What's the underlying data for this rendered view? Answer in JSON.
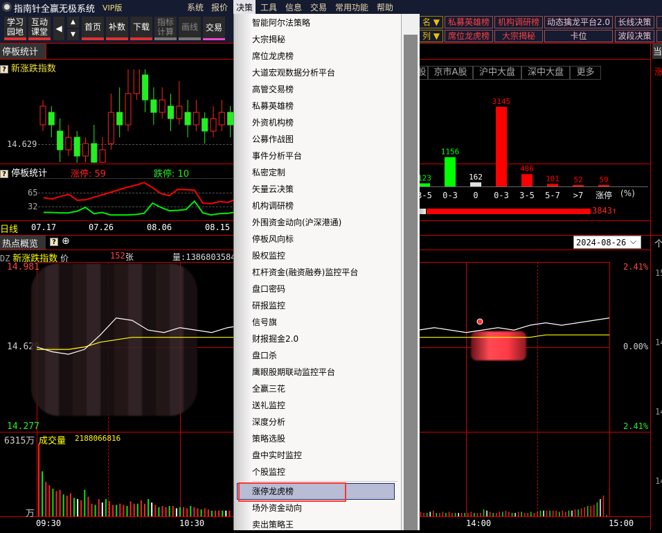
{
  "app": {
    "title": "指南针全赢无极系统",
    "edition": "VIP版",
    "menubar": [
      "系统",
      "报价",
      "决策",
      "工具",
      "信息",
      "交易",
      "常用功能",
      "帮助"
    ],
    "active_menu": "决策"
  },
  "toolbar": {
    "buttons": [
      "学习园地",
      "互动课堂",
      "首页",
      "补数",
      "下载",
      "指标计算",
      "画线",
      "交易"
    ],
    "right_row1": [
      "名",
      "私募英雄榜",
      "机构调研榜",
      "动态擒龙平台2.0",
      "长线决策"
    ],
    "right_row2": [
      "列",
      "席位龙虎榜",
      "大宗揭秘",
      "卡位",
      "波段决策"
    ]
  },
  "panel_top": {
    "tab": "停板统计",
    "index_title": "新涨跌指数",
    "price_label": "14.629",
    "candles": [
      [
        14.66,
        14.69,
        14.7,
        14.65
      ],
      [
        14.68,
        14.66,
        14.69,
        14.64
      ],
      [
        14.65,
        14.62,
        14.67,
        14.6
      ],
      [
        14.62,
        14.64,
        14.66,
        14.61
      ],
      [
        14.64,
        14.61,
        14.65,
        14.59
      ],
      [
        14.61,
        14.63,
        14.64,
        14.6
      ],
      [
        14.63,
        14.6,
        14.66,
        14.58
      ],
      [
        14.6,
        14.62,
        14.64,
        14.59
      ],
      [
        14.63,
        14.68,
        14.71,
        14.62
      ],
      [
        14.68,
        14.66,
        14.72,
        14.64
      ],
      [
        14.66,
        14.71,
        14.78,
        14.65
      ],
      [
        14.71,
        14.76,
        14.79,
        14.7
      ],
      [
        14.74,
        14.7,
        14.75,
        14.68
      ],
      [
        14.7,
        14.68,
        14.72,
        14.66
      ],
      [
        14.68,
        14.7,
        14.72,
        14.67
      ],
      [
        14.69,
        14.67,
        14.71,
        14.65
      ],
      [
        14.67,
        14.69,
        14.73,
        14.66
      ],
      [
        14.68,
        14.66,
        14.7,
        14.64
      ],
      [
        14.66,
        14.68,
        14.7,
        14.65
      ],
      [
        14.67,
        14.65,
        14.68,
        14.63
      ],
      [
        14.65,
        14.67,
        14.69,
        14.64
      ],
      [
        14.66,
        14.68,
        14.7,
        14.65
      ],
      [
        14.68,
        14.66,
        14.69,
        14.64
      ]
    ]
  },
  "limit_stats": {
    "title": "停板统计",
    "up_label": "涨停:",
    "up_value": "59",
    "down_label": "跌停:",
    "down_value": "10",
    "yticks": [
      "65",
      "32"
    ],
    "period": "日线",
    "dates": [
      "07.17",
      "07.26",
      "08.06",
      "08.15"
    ],
    "up_series": [
      53,
      50,
      56,
      61,
      47,
      48,
      54,
      60,
      66,
      72,
      78,
      83,
      89,
      77,
      63,
      58,
      73,
      72,
      71,
      40,
      39,
      44,
      42,
      50,
      42,
      47
    ],
    "down_series": [
      18,
      18,
      17,
      17,
      21,
      30,
      15,
      18,
      12,
      12,
      12,
      13,
      16,
      40,
      30,
      22,
      23,
      25,
      45,
      17,
      12,
      15,
      16,
      19,
      21,
      24
    ]
  },
  "distribution": {
    "tabs": [
      "股",
      "京市A股",
      "沪中大盘",
      "深中大盘",
      "更多"
    ],
    "categories": [
      "3-5",
      "0-3",
      "0",
      "0-3",
      "3-5",
      "5-7",
      ">7",
      "涨停"
    ],
    "values": [
      123,
      1156,
      162,
      3145,
      486,
      101,
      52,
      59
    ],
    "colors": [
      "#00ff00",
      "#00ff00",
      "#e0e0e0",
      "#ff0000",
      "#ff0000",
      "#ff0000",
      "#ff0000",
      "#ff0000"
    ],
    "unit": "(%)",
    "up_total": "3843",
    "up_arrow": "↑"
  },
  "hotspot": {
    "tab": "热点概览",
    "date": "2024-08-26",
    "code": "DZ",
    "index_name": "新涨跌指数",
    "price_prefix": "价",
    "count": "152",
    "zhang": "张",
    "volume_text": "量:1386803584",
    "price_hi": "14.981",
    "price_mid": "14.629",
    "price_lo": "14.277",
    "pct_hi": "2.41%",
    "pct_mid": "0.00%",
    "pct_lo": "2.41%",
    "price_line": [
      14.63,
      14.61,
      14.6,
      14.62,
      14.68,
      14.75,
      14.74,
      14.7,
      14.69,
      14.71,
      14.7,
      14.69,
      14.71,
      14.72,
      14.71,
      14.72,
      14.71,
      14.7,
      14.7,
      14.71,
      14.72,
      14.71,
      14.72,
      14.73,
      14.7,
      14.71,
      14.7,
      14.69,
      14.7,
      14.71,
      14.7,
      14.72,
      14.73,
      14.72,
      14.73,
      14.74,
      14.75
    ],
    "avg_line": [
      14.62,
      14.62,
      14.62,
      14.63,
      14.65,
      14.66,
      14.67,
      14.67,
      14.67,
      14.67,
      14.67,
      14.67,
      14.67,
      14.67,
      14.67,
      14.67,
      14.67,
      14.67,
      14.67,
      14.67,
      14.67,
      14.67,
      14.67,
      14.67,
      14.67,
      14.67,
      14.67,
      14.67,
      14.67,
      14.67,
      14.67,
      14.67,
      14.68,
      14.68,
      14.68,
      14.68,
      14.68
    ],
    "volume_max": "6315万",
    "volume_unit": "万",
    "volume_label": "成交量",
    "volume_value": "2188066816",
    "volume_am": [
      6315,
      3900,
      3000,
      2700,
      2400,
      2200,
      2300,
      1900,
      1800,
      2000,
      1600,
      1500,
      1400,
      2300,
      1700,
      1100,
      1000,
      1500,
      1200,
      1500,
      1300,
      1000,
      1000,
      1100,
      1000,
      900,
      1300,
      1100,
      1100,
      1400,
      1100,
      1500,
      1200,
      1000,
      800,
      900,
      800,
      900,
      900,
      700,
      800,
      800,
      700,
      900,
      800,
      700,
      600,
      700,
      600,
      500,
      500,
      500,
      500,
      500,
      500
    ],
    "volume_pm": [
      400,
      400,
      300,
      300,
      400,
      500,
      300,
      300,
      400,
      300,
      400,
      300,
      300,
      300,
      300,
      300,
      300,
      400,
      300,
      300,
      300,
      600,
      500,
      400,
      300,
      300,
      400,
      400,
      500,
      400,
      300,
      300,
      400,
      400,
      300,
      300,
      400,
      300,
      400,
      500,
      500,
      500,
      500,
      500,
      500,
      400,
      500,
      400,
      500,
      500,
      600,
      600,
      700,
      800,
      900,
      900,
      1000,
      1200,
      1500,
      1800,
      100,
      2500
    ],
    "time_labels": [
      "09:30",
      "10:30",
      "14:00",
      "15:00"
    ],
    "right_axis": [
      "15",
      "14",
      "14",
      "14"
    ]
  },
  "right_panel": {
    "tab": "当",
    "label": "涨",
    "tab2": "个"
  },
  "decision_menu": {
    "items": [
      "智能阿尔法策略",
      "大宗揭秘",
      "席位龙虎榜",
      "大道宏观数据分析平台",
      "高管交易榜",
      "私募英雄榜",
      "外资机构榜",
      "公募作战图",
      "事件分析平台",
      "私密定制",
      "矢量云决策",
      "机构调研榜",
      "外围资金动向(沪深港通)",
      "停板风向标",
      "股权监控",
      "杠杆资金(融资融券)监控平台",
      "盘口密码",
      "研报监控",
      "信号旗",
      "财报掘金2.0",
      "盘口杀",
      "鹰眼股期联动监控平台",
      "全赢三花",
      "送礼监控",
      "深度分析",
      "策略选股",
      "盘中实时监控",
      "个股监控",
      "涨停龙虎榜",
      "场外资金动向",
      "卖出策略王"
    ],
    "highlighted": "涨停龙虎榜"
  }
}
